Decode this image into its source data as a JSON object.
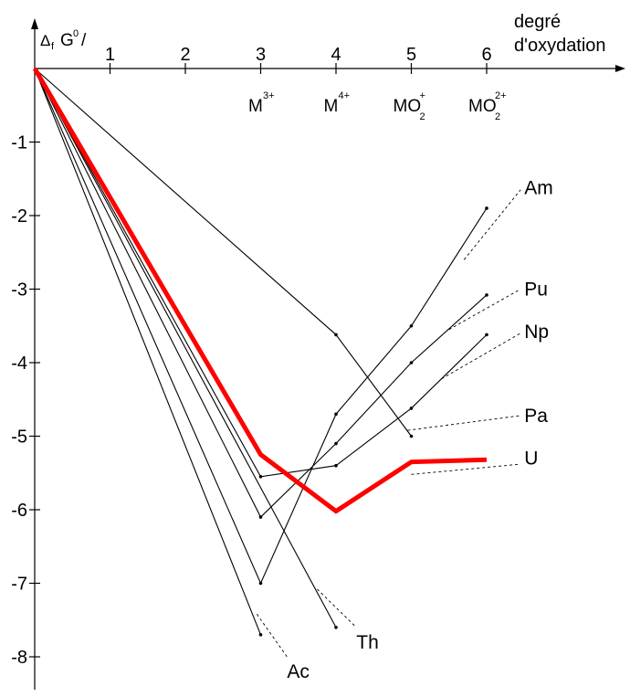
{
  "chart_data": {
    "type": "line",
    "ylabel_main": "Δ",
    "ylabel_sub": "f",
    "ylabel_rest": "G",
    "ylabel_sup": "0",
    "ylabel_slash": "/",
    "xlabel_line1": "degré",
    "xlabel_line2": "d'oxydation",
    "x_ticks": [
      "1",
      "2",
      "3",
      "4",
      "5",
      "6"
    ],
    "y_ticks": [
      "-1",
      "-2",
      "-3",
      "-4",
      "-5",
      "-6",
      "-7",
      "-8"
    ],
    "xlim": [
      0,
      6.9
    ],
    "ylim": [
      -8.3,
      0.5
    ],
    "species": [
      {
        "base": "M",
        "sub": "",
        "sup": "3+",
        "x": 3
      },
      {
        "base": "M",
        "sub": "",
        "sup": "4+",
        "x": 4
      },
      {
        "base": "MO",
        "sub": "2",
        "sup": "+",
        "x": 5
      },
      {
        "base": "MO",
        "sub": "2",
        "sup": "2+",
        "x": 6
      }
    ],
    "series": [
      {
        "name": "Am",
        "color": "#000000",
        "x": [
          0,
          3,
          4,
          5,
          6
        ],
        "y": [
          0,
          -7.0,
          -4.7,
          -3.5,
          -1.9
        ]
      },
      {
        "name": "Pu",
        "color": "#000000",
        "x": [
          0,
          3,
          4,
          5,
          6
        ],
        "y": [
          0,
          -6.1,
          -5.1,
          -4.0,
          -3.08
        ]
      },
      {
        "name": "Np",
        "color": "#000000",
        "x": [
          0,
          3,
          4,
          5,
          6
        ],
        "y": [
          0,
          -5.55,
          -5.4,
          -4.62,
          -3.62
        ]
      },
      {
        "name": "Pa",
        "color": "#000000",
        "x": [
          0,
          4,
          5
        ],
        "y": [
          0,
          -3.62,
          -5.0
        ]
      },
      {
        "name": "U",
        "color": "#ff0000",
        "highlight": true,
        "x": [
          0,
          3,
          4,
          5,
          6
        ],
        "y": [
          0,
          -5.25,
          -6.02,
          -5.35,
          -5.32
        ]
      },
      {
        "name": "Th",
        "color": "#000000",
        "x": [
          0,
          4
        ],
        "y": [
          0,
          -7.6
        ]
      },
      {
        "name": "Ac",
        "color": "#000000",
        "x": [
          0,
          3
        ],
        "y": [
          0,
          -7.7
        ]
      }
    ],
    "leaders": [
      {
        "series": "Am",
        "from": [
          5.7,
          -2.6
        ],
        "to": [
          6.45,
          -1.65
        ],
        "label_at": [
          6.5,
          -1.62
        ]
      },
      {
        "series": "Pu",
        "from": [
          5.5,
          -3.55
        ],
        "to": [
          6.45,
          -3.0
        ],
        "label_at": [
          6.5,
          -3.0
        ]
      },
      {
        "series": "Np",
        "from": [
          5.4,
          -4.22
        ],
        "to": [
          6.45,
          -3.6
        ],
        "label_at": [
          6.5,
          -3.58
        ]
      },
      {
        "series": "Pa",
        "from": [
          4.95,
          -4.92
        ],
        "to": [
          6.45,
          -4.72
        ],
        "label_at": [
          6.5,
          -4.72
        ]
      },
      {
        "series": "U",
        "from": [
          5.0,
          -5.52
        ],
        "to": [
          6.45,
          -5.38
        ],
        "label_at": [
          6.5,
          -5.3
        ]
      },
      {
        "series": "Th",
        "from": [
          3.75,
          -7.08
        ],
        "to": [
          4.25,
          -7.58
        ],
        "label_at": [
          4.27,
          -7.8
        ]
      },
      {
        "series": "Ac",
        "from": [
          2.95,
          -7.42
        ],
        "to": [
          3.35,
          -8.0
        ],
        "label_at": [
          3.35,
          -8.2
        ]
      }
    ],
    "grid": false,
    "legend": "direct labels at right"
  }
}
